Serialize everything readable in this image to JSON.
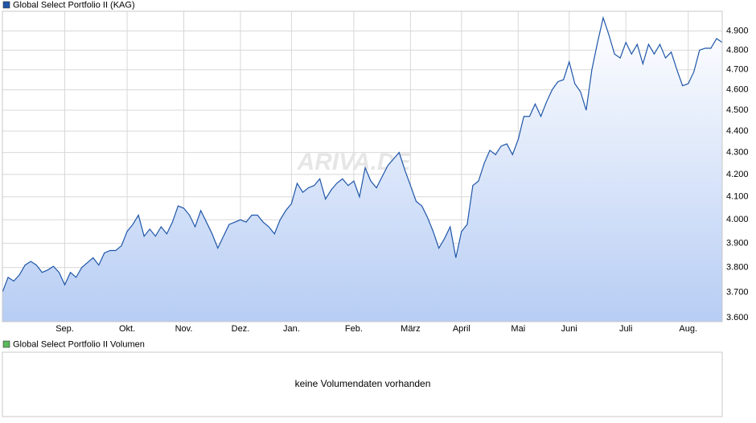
{
  "chart_data": {
    "type": "line",
    "log_scale": true,
    "grid": true,
    "watermark": "ARIVA.DE",
    "categories": [
      null,
      null,
      null,
      null,
      null,
      null,
      null,
      null,
      null,
      null,
      null,
      "Sep.",
      null,
      null,
      null,
      null,
      null,
      null,
      null,
      null,
      null,
      null,
      "Okt.",
      null,
      null,
      null,
      null,
      null,
      null,
      null,
      null,
      null,
      "Nov.",
      null,
      null,
      null,
      null,
      null,
      null,
      null,
      null,
      null,
      "Dez.",
      null,
      null,
      null,
      null,
      null,
      null,
      null,
      null,
      "Jan.",
      null,
      null,
      null,
      null,
      null,
      null,
      null,
      null,
      null,
      null,
      "Feb.",
      null,
      null,
      null,
      null,
      null,
      null,
      null,
      null,
      null,
      "März",
      null,
      null,
      null,
      null,
      null,
      null,
      null,
      null,
      "April",
      null,
      null,
      null,
      null,
      null,
      null,
      null,
      null,
      null,
      "Mai",
      null,
      null,
      null,
      null,
      null,
      null,
      null,
      null,
      "Juni",
      null,
      null,
      null,
      null,
      null,
      null,
      null,
      null,
      null,
      "Juli",
      null,
      null,
      null,
      null,
      null,
      null,
      null,
      null,
      null,
      null,
      "Aug.",
      null,
      null,
      null,
      null,
      null,
      null
    ],
    "series": [
      {
        "name": "Global Select Portfolio II (KAG)",
        "color": "#1f56a8",
        "values": [
          3700,
          3760,
          3745,
          3770,
          3810,
          3825,
          3810,
          3780,
          3790,
          3805,
          3780,
          3730,
          3780,
          3760,
          3800,
          3820,
          3840,
          3810,
          3860,
          3870,
          3870,
          3890,
          3950,
          3980,
          4020,
          3930,
          3960,
          3930,
          3970,
          3940,
          3990,
          4060,
          4050,
          4020,
          3970,
          4040,
          3990,
          3940,
          3880,
          3930,
          3980,
          3990,
          4000,
          3990,
          4020,
          4020,
          3990,
          3970,
          3940,
          4000,
          4040,
          4070,
          4160,
          4120,
          4140,
          4150,
          4180,
          4090,
          4130,
          4160,
          4180,
          4150,
          4170,
          4100,
          4230,
          4170,
          4140,
          4190,
          4240,
          4270,
          4300,
          4220,
          4150,
          4080,
          4060,
          4010,
          3950,
          3880,
          3920,
          3970,
          3840,
          3950,
          3980,
          4150,
          4170,
          4250,
          4310,
          4290,
          4330,
          4340,
          4290,
          4360,
          4470,
          4470,
          4530,
          4470,
          4540,
          4600,
          4640,
          4650,
          4740,
          4630,
          4590,
          4500,
          4700,
          4840,
          4970,
          4880,
          4780,
          4760,
          4840,
          4780,
          4830,
          4730,
          4830,
          4780,
          4830,
          4760,
          4790,
          4700,
          4620,
          4630,
          4690,
          4800,
          4810,
          4810,
          4860,
          4840
        ]
      }
    ],
    "ylim": [
      3585,
      5005
    ],
    "yticks": [
      {
        "value": 3600,
        "label": "3.600"
      },
      {
        "value": 3700,
        "label": "3.700"
      },
      {
        "value": 3800,
        "label": "3.800"
      },
      {
        "value": 3900,
        "label": "3.900"
      },
      {
        "value": 4000,
        "label": "4.000"
      },
      {
        "value": 4100,
        "label": "4.100"
      },
      {
        "value": 4200,
        "label": "4.200"
      },
      {
        "value": 4300,
        "label": "4.300"
      },
      {
        "value": 4400,
        "label": "4.400"
      },
      {
        "value": 4500,
        "label": "4.500"
      },
      {
        "value": 4600,
        "label": "4.600"
      },
      {
        "value": 4700,
        "label": "4.700"
      },
      {
        "value": 4800,
        "label": "4.800"
      },
      {
        "value": 4900,
        "label": "4.900"
      }
    ]
  },
  "volume_panel": {
    "legend": "Global Select Portfolio II Volumen",
    "legend_color": "#5cb85c",
    "message": "keine Volumendaten vorhanden"
  }
}
